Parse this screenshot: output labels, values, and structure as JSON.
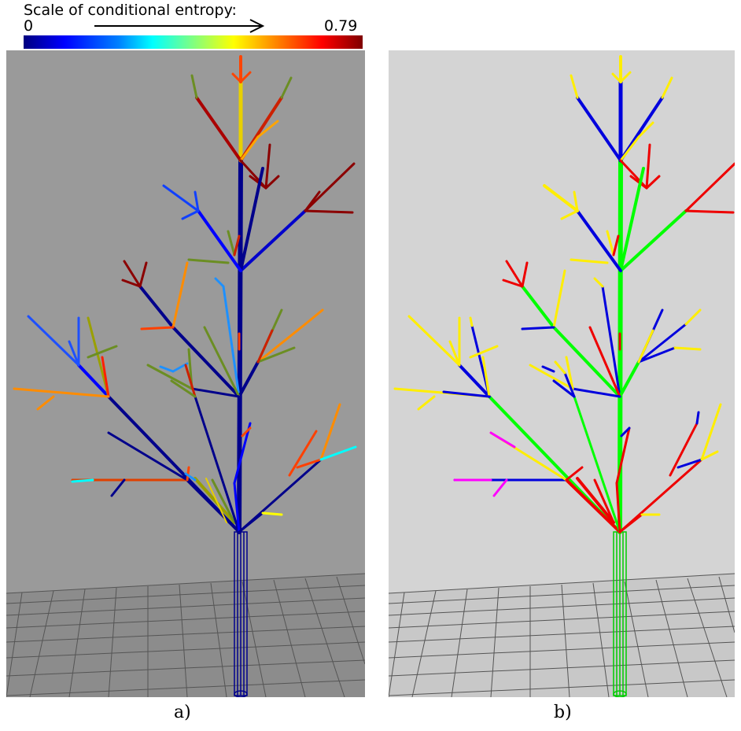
{
  "scale": {
    "title": "Scale of conditional entropy:",
    "min_label": "0",
    "max_label": "0.79"
  },
  "captions": {
    "a": "a)",
    "b": "b)"
  },
  "colors": {
    "panel_a_bg": "#9a9a9a",
    "panel_b_bg": "#d4d4d4",
    "trunk_a": "#00008b",
    "trunk_b": "#00ff00"
  }
}
